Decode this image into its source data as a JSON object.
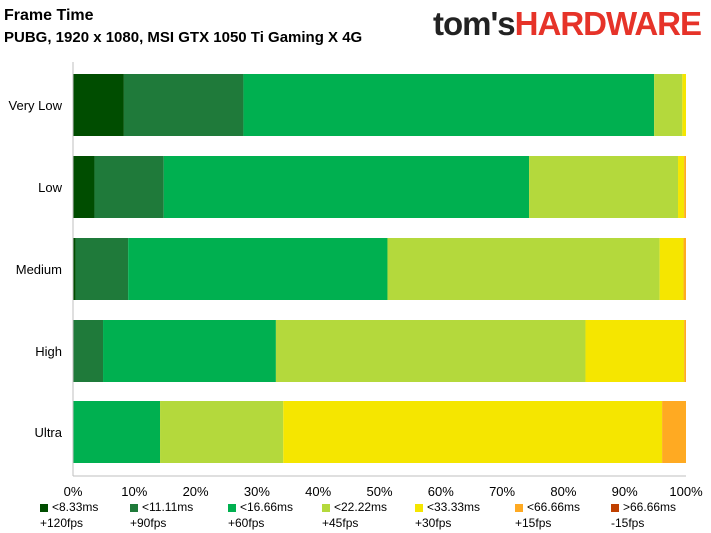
{
  "header": {
    "title": "Frame Time",
    "subtitle": "PUBG, 1920 x 1080, MSI GTX 1050 Ti Gaming X 4G",
    "logo_part1": "tom's",
    "logo_part2": "HARDWARE"
  },
  "chart_data": {
    "type": "bar",
    "orientation": "horizontal",
    "stacked": true,
    "title": "Frame Time",
    "subtitle": "PUBG, 1920 x 1080, MSI GTX 1050 Ti Gaming X 4G",
    "categories": [
      "Very Low",
      "Low",
      "Medium",
      "High",
      "Ultra"
    ],
    "xlim": [
      0,
      100
    ],
    "x_ticks": [
      "0%",
      "10%",
      "20%",
      "30%",
      "40%",
      "50%",
      "60%",
      "70%",
      "80%",
      "90%",
      "100%"
    ],
    "grid": false,
    "legend_position": "bottom",
    "series": [
      {
        "name": "<8.33ms",
        "name2": "+120fps",
        "color": "#004d00",
        "values": [
          8.3,
          3.5,
          0.4,
          0,
          0
        ]
      },
      {
        "name": "<11.11ms",
        "name2": "+90fps",
        "color": "#1f7a3a",
        "values": [
          19.5,
          11.3,
          8.6,
          4.9,
          0
        ]
      },
      {
        "name": "<16.66ms",
        "name2": "+60fps",
        "color": "#00b050",
        "values": [
          67.0,
          59.6,
          42.3,
          28.2,
          14.2
        ]
      },
      {
        "name": "<22.22ms",
        "name2": "+45fps",
        "color": "#b4d93c",
        "values": [
          4.6,
          24.3,
          44.4,
          50.5,
          20.1
        ]
      },
      {
        "name": "<33.33ms",
        "name2": "+30fps",
        "color": "#f5e600",
        "values": [
          0.6,
          1.0,
          3.9,
          16.1,
          61.8
        ]
      },
      {
        "name": "<66.66ms",
        "name2": "+15fps",
        "color": "#ffaa22",
        "values": [
          0,
          0.3,
          0.4,
          0.3,
          3.9
        ]
      },
      {
        "name": ">66.66ms",
        "name2": "-15fps",
        "color": "#c04000",
        "values": [
          0,
          0,
          0,
          0,
          0
        ]
      }
    ]
  }
}
